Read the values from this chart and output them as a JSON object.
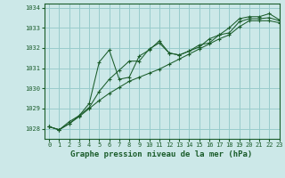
{
  "title": "Graphe pression niveau de la mer (hPa)",
  "bg_color": "#cce8e8",
  "grid_color": "#99cccc",
  "line_color": "#1a5c2a",
  "xlim": [
    -0.5,
    23
  ],
  "ylim": [
    1027.5,
    1034.2
  ],
  "yticks": [
    1028,
    1029,
    1030,
    1031,
    1032,
    1033,
    1034
  ],
  "xticks": [
    0,
    1,
    2,
    3,
    4,
    5,
    6,
    7,
    8,
    9,
    10,
    11,
    12,
    13,
    14,
    15,
    16,
    17,
    18,
    19,
    20,
    21,
    22,
    23
  ],
  "series": [
    [
      1028.1,
      1027.95,
      1028.25,
      1028.65,
      1029.05,
      1029.85,
      1030.45,
      1030.9,
      1031.35,
      1031.35,
      1031.95,
      1032.25,
      1031.75,
      1031.65,
      1031.85,
      1032.05,
      1032.45,
      1032.65,
      1032.75,
      1033.3,
      1033.45,
      1033.45,
      1033.5,
      1033.35
    ],
    [
      1028.1,
      1027.95,
      1028.25,
      1028.6,
      1029.0,
      1029.4,
      1029.75,
      1030.05,
      1030.35,
      1030.55,
      1030.75,
      1030.95,
      1031.2,
      1031.45,
      1031.7,
      1031.95,
      1032.2,
      1032.45,
      1032.65,
      1033.05,
      1033.35,
      1033.35,
      1033.35,
      1033.25
    ],
    [
      1028.1,
      1027.95,
      1028.35,
      1028.65,
      1029.25,
      1031.3,
      1031.9,
      1030.45,
      1030.55,
      1031.6,
      1031.9,
      1032.35,
      1031.75,
      1031.65,
      1031.85,
      1032.15,
      1032.25,
      1032.65,
      1033.0,
      1033.45,
      1033.55,
      1033.55,
      1033.7,
      1033.4
    ]
  ]
}
